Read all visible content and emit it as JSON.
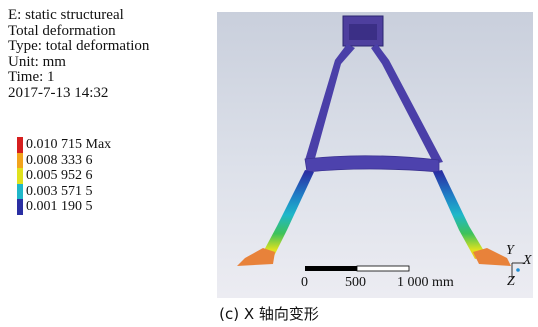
{
  "info": {
    "analysis": "E: static structureal",
    "result": "Total deformation",
    "type": "Type: total deformation",
    "unit": "Unit: mm",
    "time": "Time: 1",
    "date": "2017-7-13 14:32"
  },
  "legend": [
    {
      "label": "0.010 715 Max",
      "color": "#d61f1f"
    },
    {
      "label": "0.008 333 6",
      "color": "#f2a41c"
    },
    {
      "label": "0.005 952 6",
      "color": "#e0e21e"
    },
    {
      "label": "0.003 571 5",
      "color": "#1fb7c9"
    },
    {
      "label": "0.001 190 5",
      "color": "#2a2fa3"
    }
  ],
  "scale_bar": {
    "tick0": "0",
    "tick1": "500",
    "tick2": "1 000 mm"
  },
  "triad": {
    "y": "Y",
    "x": "X",
    "z": "Z"
  },
  "caption": "(c) X 轴向变形"
}
